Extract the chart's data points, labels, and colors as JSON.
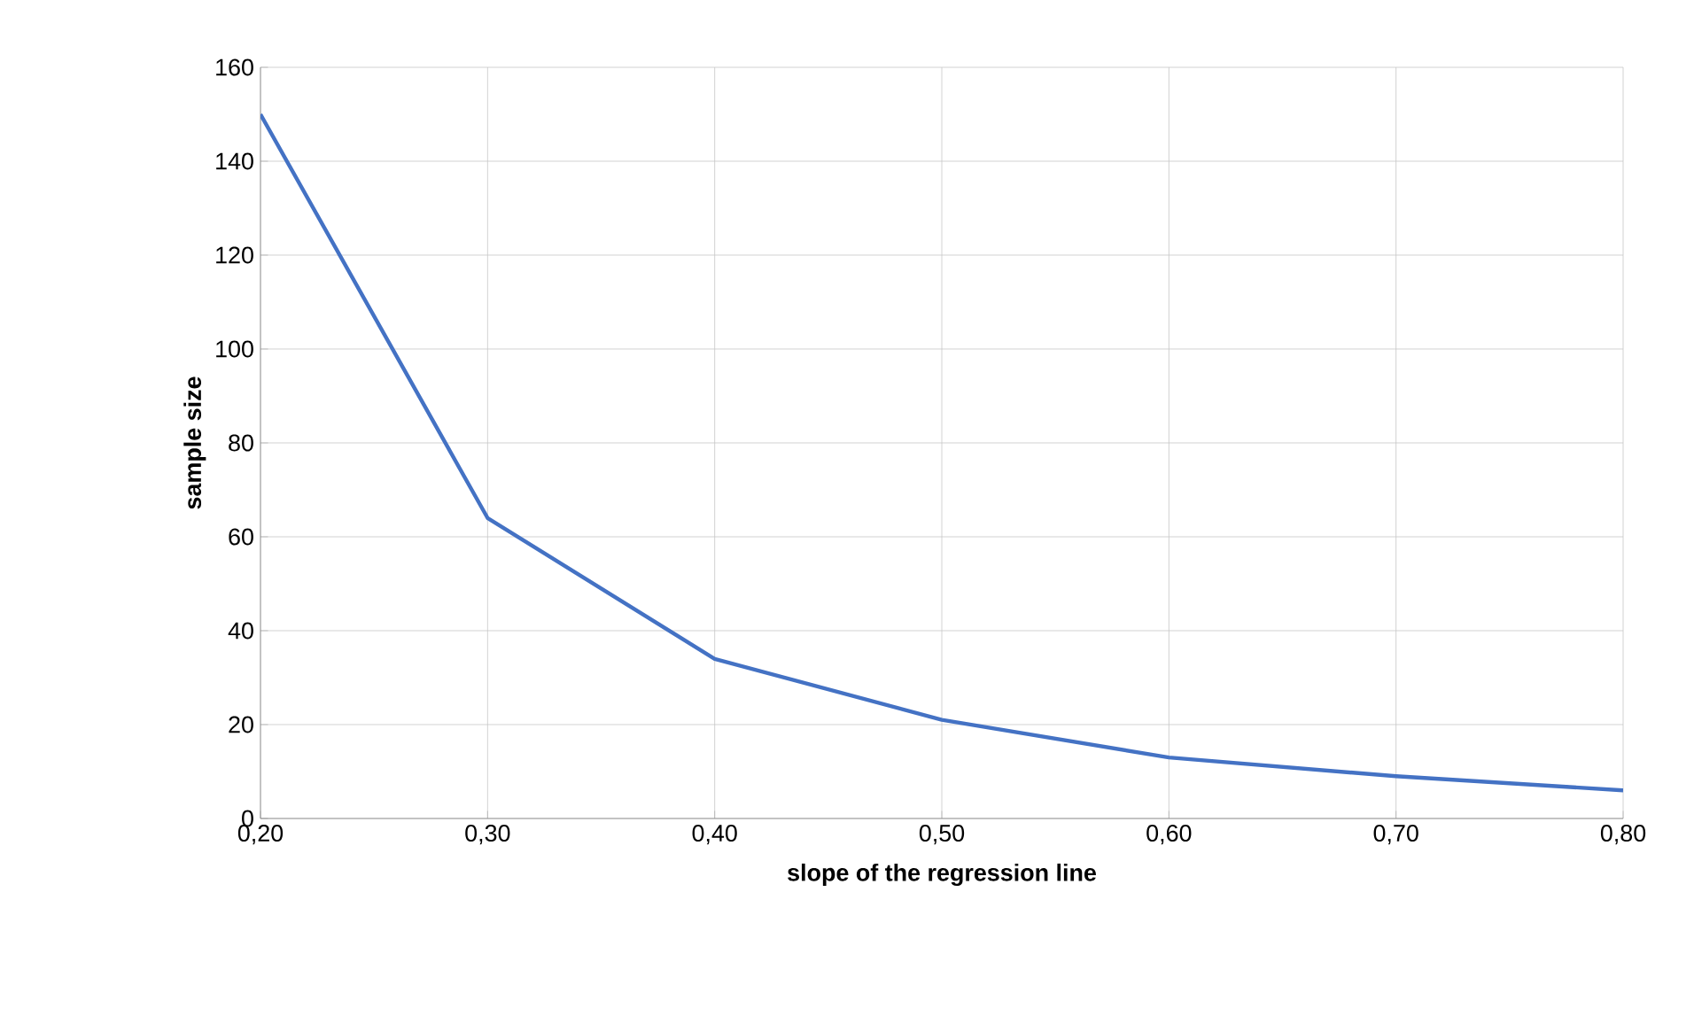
{
  "chart_data": {
    "type": "line",
    "xlabel": "slope of the regression line",
    "ylabel": "sample size",
    "x": [
      0.2,
      0.3,
      0.4,
      0.5,
      0.6,
      0.7,
      0.8
    ],
    "series": [
      {
        "color": "#4472c4",
        "values": [
          150,
          64,
          34,
          21,
          13,
          9,
          6
        ]
      }
    ],
    "xlim": [
      0.2,
      0.8
    ],
    "xticks": [
      {
        "value": 0.2,
        "label": "0,20"
      },
      {
        "value": 0.3,
        "label": "0,30"
      },
      {
        "value": 0.4,
        "label": "0,40"
      },
      {
        "value": 0.5,
        "label": "0,50"
      },
      {
        "value": 0.6,
        "label": "0,60"
      },
      {
        "value": 0.7,
        "label": "0,70"
      },
      {
        "value": 0.8,
        "label": "0,80"
      }
    ],
    "ylim": [
      0,
      160
    ],
    "yticks": [
      0,
      20,
      40,
      60,
      80,
      100,
      120,
      140,
      160
    ],
    "grid": true,
    "marker": "none",
    "line_style": "solid"
  }
}
